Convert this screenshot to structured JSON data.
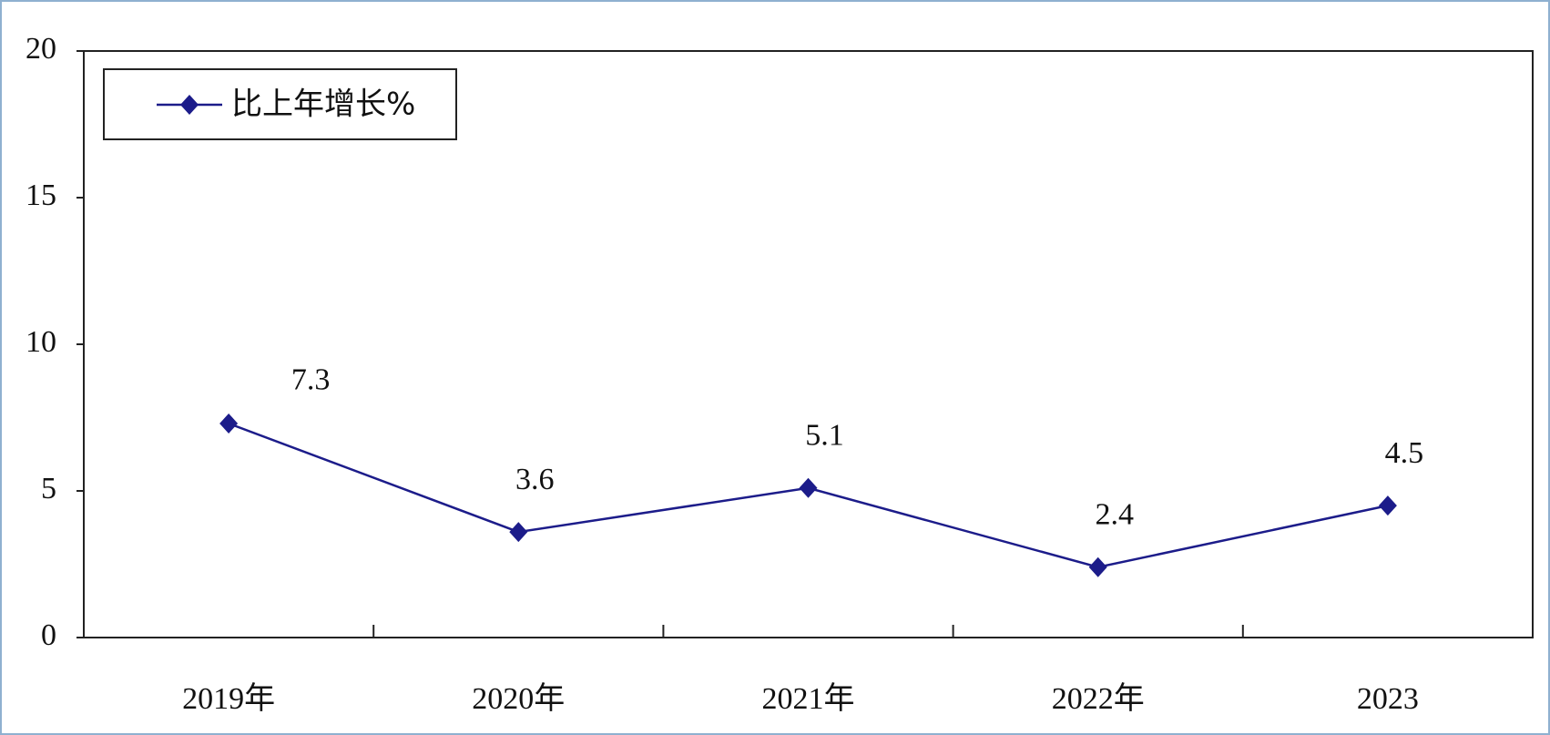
{
  "chart_data": {
    "type": "line",
    "categories": [
      "2019年",
      "2020年",
      "2021年",
      "2022年",
      "2023"
    ],
    "series": [
      {
        "name": "比上年增长%",
        "color": "#1c1c8a",
        "values": [
          7.3,
          3.6,
          5.1,
          2.4,
          4.5
        ]
      }
    ],
    "ylim": [
      0,
      20
    ],
    "yticks": [
      0,
      5,
      10,
      15,
      20
    ],
    "grid": false,
    "legend": "top-left"
  }
}
